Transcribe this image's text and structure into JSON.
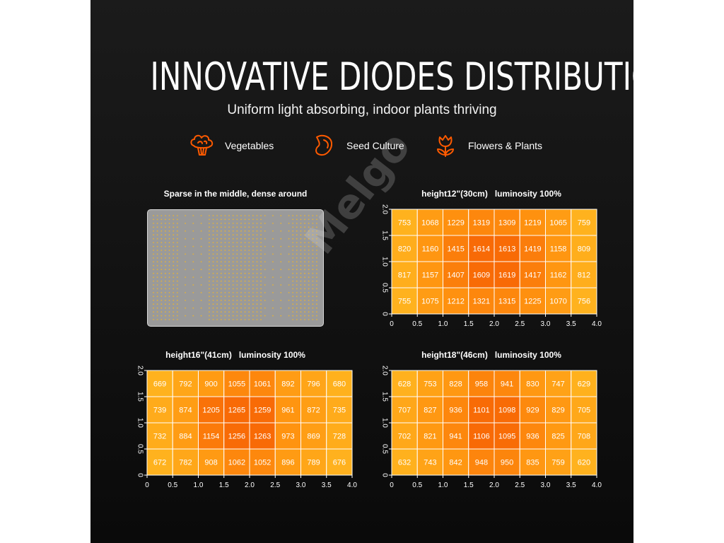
{
  "poster": {
    "title": "INNOVATIVE DIODES DISTRIBUTION",
    "subtitle": "Uniform light absorbing, indoor plants thriving",
    "watermark": "Melgo",
    "categories": [
      {
        "label": "Vegetables",
        "icon": "broccoli-icon"
      },
      {
        "label": "Seed Culture",
        "icon": "seed-icon"
      },
      {
        "label": "Flowers & Plants",
        "icon": "tulip-icon"
      }
    ],
    "panel_caption": "Sparse in the middle, dense around",
    "accent_color": "#ff5a00"
  },
  "chart_data": [
    {
      "type": "heatmap",
      "title": "height12\"(30cm)   luminosity 100%",
      "x_ticks": [
        "0",
        "0.5",
        "1.0",
        "1.5",
        "2.0",
        "2.5",
        "3.0",
        "3.5",
        "4.0"
      ],
      "y_ticks": [
        "0",
        "0.5",
        "1.0",
        "1.5",
        "2.0"
      ],
      "xlim": [
        0,
        4
      ],
      "ylim": [
        0,
        2
      ],
      "values": [
        [
          753,
          1068,
          1229,
          1319,
          1309,
          1219,
          1065,
          759
        ],
        [
          820,
          1160,
          1415,
          1614,
          1613,
          1419,
          1158,
          809
        ],
        [
          817,
          1157,
          1407,
          1609,
          1619,
          1417,
          1162,
          812
        ],
        [
          755,
          1075,
          1212,
          1321,
          1315,
          1225,
          1070,
          756
        ]
      ]
    },
    {
      "type": "heatmap",
      "title": "height16\"(41cm)   luminosity 100%",
      "x_ticks": [
        "0",
        "0.5",
        "1.0",
        "1.5",
        "2.0",
        "2.5",
        "3.0",
        "3.5",
        "4.0"
      ],
      "y_ticks": [
        "0",
        "0.5",
        "1.0",
        "1.5",
        "2.0"
      ],
      "xlim": [
        0,
        4
      ],
      "ylim": [
        0,
        2
      ],
      "values": [
        [
          669,
          792,
          900,
          1055,
          1061,
          892,
          796,
          680
        ],
        [
          739,
          874,
          1205,
          1265,
          1259,
          961,
          872,
          735
        ],
        [
          732,
          884,
          1154,
          1256,
          1263,
          973,
          869,
          728
        ],
        [
          672,
          782,
          908,
          1062,
          1052,
          896,
          789,
          676
        ]
      ]
    },
    {
      "type": "heatmap",
      "title": "height18\"(46cm)   luminosity 100%",
      "x_ticks": [
        "0",
        "0.5",
        "1.0",
        "1.5",
        "2.0",
        "2.5",
        "3.0",
        "3.5",
        "4.0"
      ],
      "y_ticks": [
        "0",
        "0.5",
        "1.0",
        "1.5",
        "2.0"
      ],
      "xlim": [
        0,
        4
      ],
      "ylim": [
        0,
        2
      ],
      "values": [
        [
          628,
          753,
          828,
          958,
          941,
          830,
          747,
          629
        ],
        [
          707,
          827,
          936,
          1101,
          1098,
          929,
          829,
          705
        ],
        [
          702,
          821,
          941,
          1106,
          1095,
          936,
          825,
          708
        ],
        [
          632,
          743,
          842,
          948,
          950,
          835,
          759,
          620
        ]
      ]
    }
  ],
  "colors": {
    "low": "#ffb21e",
    "mid": "#ff9410",
    "high": "#f86a06",
    "cell_border": "#ffffff",
    "axis": "#ffffff",
    "led_dot": "#e2b13a"
  }
}
